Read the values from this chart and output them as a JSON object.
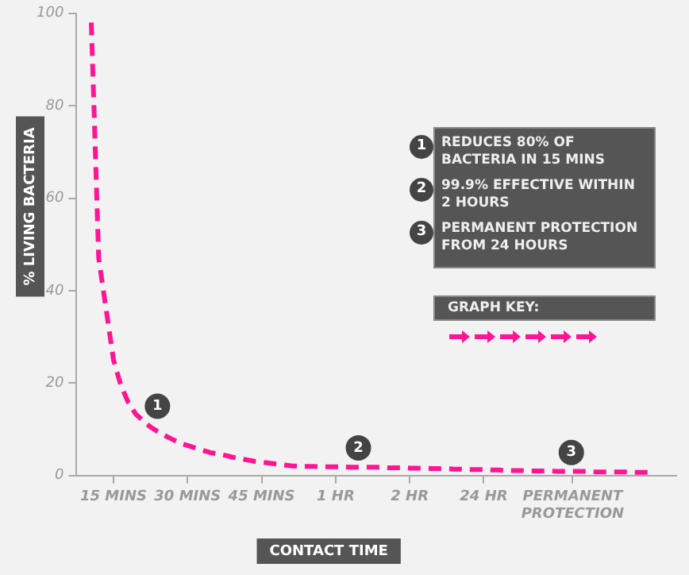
{
  "chart_data": {
    "type": "line",
    "xlabel": "CONTACT TIME",
    "ylabel": "% LIVING BACTERIA",
    "legend_title": "GRAPH KEY:",
    "line_style": "dashed",
    "marker": "none",
    "grid": false,
    "categories": [
      null,
      null,
      null,
      null,
      null,
      "15 MINS",
      null,
      null,
      null,
      null,
      null,
      null,
      null,
      null,
      null,
      "30 MINS",
      null,
      null,
      null,
      null,
      null,
      null,
      null,
      null,
      null,
      "45 MINS",
      null,
      null,
      null,
      null,
      null,
      null,
      null,
      null,
      null,
      "1 HR",
      null,
      null,
      null,
      null,
      null,
      null,
      null,
      null,
      null,
      "2 HR",
      null,
      null,
      null,
      null,
      null,
      null,
      null,
      null,
      null,
      "24 HR",
      null,
      null,
      null,
      null,
      null,
      null,
      null,
      null,
      null,
      null,
      null,
      "PERMANENT PROTECTION",
      null,
      null,
      null,
      null,
      null,
      null,
      null,
      null,
      null,
      null,
      null,
      null,
      null,
      null
    ],
    "series": [
      {
        "color": "#ff1493",
        "values": [
          null,
          null,
          98,
          47,
          36,
          25,
          19.5,
          15.8,
          13.3,
          11.9,
          10.5,
          9.5,
          8.6,
          7.8,
          7,
          6.5,
          6,
          5.5,
          5,
          4.7,
          4.4,
          4,
          3.7,
          3.4,
          3.1,
          2.9,
          2.7,
          2.5,
          2.3,
          2.1,
          2,
          2,
          2,
          1.9,
          1.9,
          1.9,
          1.9,
          1.8,
          1.8,
          1.8,
          1.8,
          1.8,
          1.7,
          1.7,
          1.7,
          1.6,
          1.6,
          1.6,
          1.5,
          1.5,
          1.5,
          1.4,
          1.4,
          1.3,
          1.3,
          1.3,
          1.2,
          1.2,
          1.1,
          1.1,
          1.1,
          1,
          1,
          1,
          1,
          0.9,
          0.9,
          0.9,
          0.9,
          0.9,
          0.8,
          0.8,
          0.8,
          0.8,
          0.8,
          0.7,
          0.7,
          0.7,
          0.7,
          null,
          null,
          null
        ]
      }
    ],
    "ylim": [
      0,
      100
    ],
    "yticks": [
      0,
      20,
      40,
      60,
      80,
      100
    ],
    "annotations": [
      {
        "text": "1",
        "y": 15
      },
      {
        "text": "2",
        "y": 6
      },
      {
        "text": "3",
        "y": 5
      },
      "REDUCES 80% OF BACTERIA IN 15 MINS",
      "99.9% EFFECTIVE WITHIN 2 HOURS",
      "PERMANENT PROTECTION FROM 24 HOURS"
    ]
  }
}
